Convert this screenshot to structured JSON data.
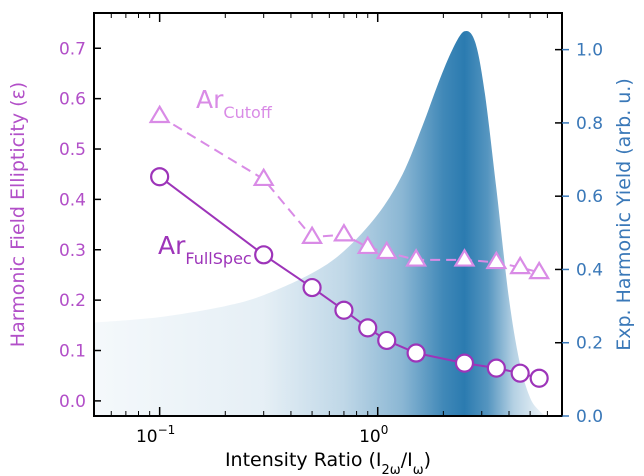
{
  "chart_data": {
    "type": "line",
    "xscale": "log",
    "xlim": [
      0.05,
      7
    ],
    "xlabel": "Intensity Ratio (I2ω/Iω)",
    "xlabel_parts": {
      "base": "Intensity Ratio (I",
      "sub1": "2ω",
      "mid": "/I",
      "sub2": "ω",
      "end": ")"
    },
    "xticks": [
      {
        "value": 0.1,
        "base": "10",
        "exp": "−1"
      },
      {
        "value": 1,
        "base": "10",
        "exp": "0"
      }
    ],
    "ylim_left": [
      -0.03,
      0.77
    ],
    "ylabel_left": "Harmonic Field Ellipticity (ε)",
    "yticks_left": [
      "0.0",
      "0.1",
      "0.2",
      "0.3",
      "0.4",
      "0.5",
      "0.6",
      "0.7"
    ],
    "ylim_right": [
      0.0,
      1.1
    ],
    "ylabel_right": "Exp. Harmonic Yield (arb. u.)",
    "yticks_right": [
      "0.0",
      "0.2",
      "0.4",
      "0.6",
      "0.8",
      "1.0"
    ],
    "series": [
      {
        "name": "ArCutoff",
        "label_base": "Ar",
        "label_sub": "Cutoff",
        "marker": "triangle",
        "line": "dashed",
        "color": "#d98be6",
        "x": [
          0.1,
          0.3,
          0.5,
          0.7,
          0.9,
          1.1,
          1.5,
          2.5,
          3.5,
          4.5,
          5.5
        ],
        "y": [
          0.565,
          0.44,
          0.325,
          0.33,
          0.305,
          0.295,
          0.28,
          0.28,
          0.275,
          0.265,
          0.255
        ]
      },
      {
        "name": "ArFullSpec",
        "label_base": "Ar",
        "label_sub": "FullSpec",
        "marker": "circle",
        "line": "solid",
        "color": "#9d34b9",
        "x": [
          0.1,
          0.3,
          0.5,
          0.7,
          0.9,
          1.1,
          1.5,
          2.5,
          3.5,
          4.5,
          5.5
        ],
        "y": [
          0.445,
          0.29,
          0.225,
          0.18,
          0.145,
          0.12,
          0.095,
          0.075,
          0.065,
          0.055,
          0.045
        ]
      }
    ],
    "yield_curve": {
      "axis": "right",
      "color": "#2b7bb0",
      "x": [
        0.05,
        0.1,
        0.2,
        0.3,
        0.5,
        0.7,
        1.0,
        1.3,
        1.6,
        1.9,
        2.2,
        2.5,
        2.8,
        3.1,
        3.5,
        4.0,
        4.5,
        5.0,
        5.5,
        6.0,
        7.0
      ],
      "y": [
        0.255,
        0.27,
        0.3,
        0.33,
        0.39,
        0.45,
        0.55,
        0.66,
        0.79,
        0.91,
        1.0,
        1.05,
        1.02,
        0.88,
        0.62,
        0.32,
        0.14,
        0.05,
        0.015,
        0.0,
        0.0
      ]
    }
  }
}
